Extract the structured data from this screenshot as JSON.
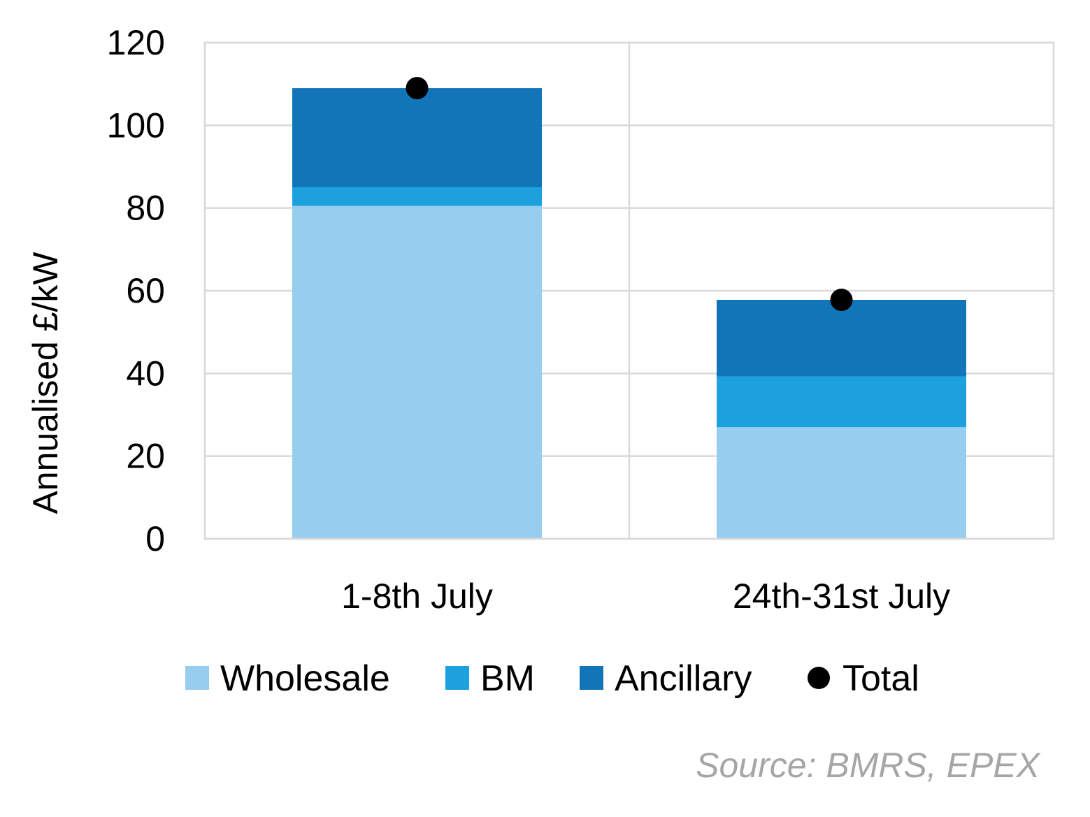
{
  "chart_data": {
    "type": "bar",
    "stacked": true,
    "categories": [
      "1-8th July",
      "24th-31st July"
    ],
    "series": [
      {
        "name": "Wholesale",
        "values": [
          80.5,
          27
        ],
        "color": "#97cdef"
      },
      {
        "name": "BM",
        "values": [
          4.5,
          12.3
        ],
        "color": "#1ca0de"
      },
      {
        "name": "Ancillary",
        "values": [
          24,
          18.5
        ],
        "color": "#1175b8"
      }
    ],
    "total": {
      "name": "Total",
      "values": [
        109,
        57.8
      ],
      "marker": "dot",
      "color": "#000000"
    },
    "title": "",
    "xlabel": "",
    "ylabel": "Annualised £/kW",
    "ylim": [
      0,
      120
    ],
    "yticks": [
      0,
      20,
      40,
      60,
      80,
      100,
      120
    ],
    "grid": true,
    "legend_position": "bottom",
    "source": "Source: BMRS, EPEX"
  }
}
